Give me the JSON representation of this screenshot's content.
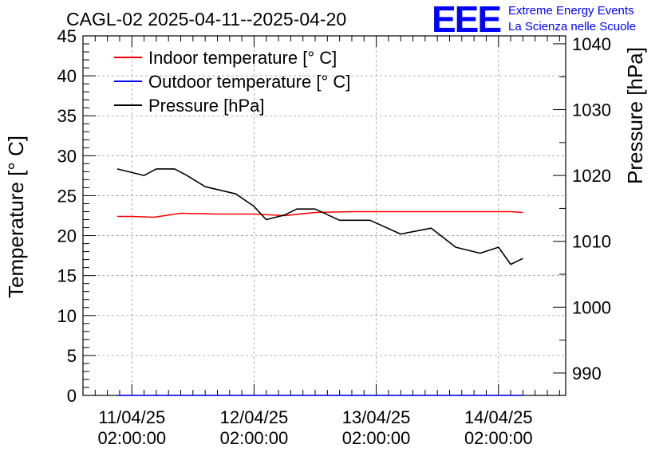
{
  "chart_data": {
    "type": "line",
    "title": "CAGL-02 2025-04-11--2025-04-20",
    "ylabel_left": "Temperature [° C]",
    "ylabel_right": "Pressure [hPa]",
    "x_ticks": [
      {
        "line1": "11/04/25",
        "line2": "02:00:00",
        "x": 1.0
      },
      {
        "line1": "12/04/25",
        "line2": "02:00:00",
        "x": 2.0
      },
      {
        "line1": "13/04/25",
        "line2": "02:00:00",
        "x": 3.0
      },
      {
        "line1": "14/04/25",
        "line2": "02:00:00",
        "x": 4.0
      }
    ],
    "xlim": [
      0.6,
      4.55
    ],
    "y_left": {
      "lim": [
        0,
        45
      ],
      "ticks": [
        "0",
        "5",
        "10",
        "15",
        "20",
        "25",
        "30",
        "35",
        "40",
        "45"
      ]
    },
    "y_right": {
      "lim": [
        986.6,
        1041.2
      ],
      "ticks": [
        "990",
        "1000",
        "1010",
        "1020",
        "1030",
        "1040"
      ]
    },
    "grid": true,
    "legend_position": "top-left",
    "series": [
      {
        "name": "Indoor temperature [° C]",
        "color": "#ff0000",
        "axis": "left",
        "x": [
          0.88,
          1.0,
          1.18,
          1.4,
          1.7,
          2.0,
          2.25,
          2.5,
          2.8,
          3.0,
          3.3,
          3.6,
          3.9,
          4.1,
          4.2
        ],
        "y": [
          22.4,
          22.4,
          22.3,
          22.8,
          22.7,
          22.7,
          22.5,
          22.9,
          23.0,
          23.0,
          23.0,
          23.0,
          23.0,
          23.0,
          22.9
        ]
      },
      {
        "name": "Outdoor temperature [° C]",
        "color": "#0000ff",
        "axis": "left",
        "x": [
          0.88,
          4.2
        ],
        "y": [
          0.0,
          0.0
        ]
      },
      {
        "name": "Pressure [hPa]",
        "color": "#000000",
        "axis": "right",
        "x": [
          0.88,
          1.1,
          1.2,
          1.35,
          1.45,
          1.6,
          1.85,
          2.0,
          2.1,
          2.25,
          2.35,
          2.5,
          2.7,
          2.95,
          3.2,
          3.45,
          3.65,
          3.85,
          4.0,
          4.1,
          4.2
        ],
        "y": [
          1021.0,
          1020.0,
          1021.0,
          1021.0,
          1020.0,
          1018.3,
          1017.2,
          1015.3,
          1013.3,
          1014.0,
          1014.9,
          1014.9,
          1013.2,
          1013.2,
          1011.1,
          1012.0,
          1009.1,
          1008.2,
          1009.1,
          1006.5,
          1007.4
        ]
      }
    ]
  },
  "branding": {
    "logo_text": "EEE",
    "line1": "Extreme Energy Events",
    "line2": "La Scienza nelle Scuole",
    "color": "#0000ff"
  }
}
